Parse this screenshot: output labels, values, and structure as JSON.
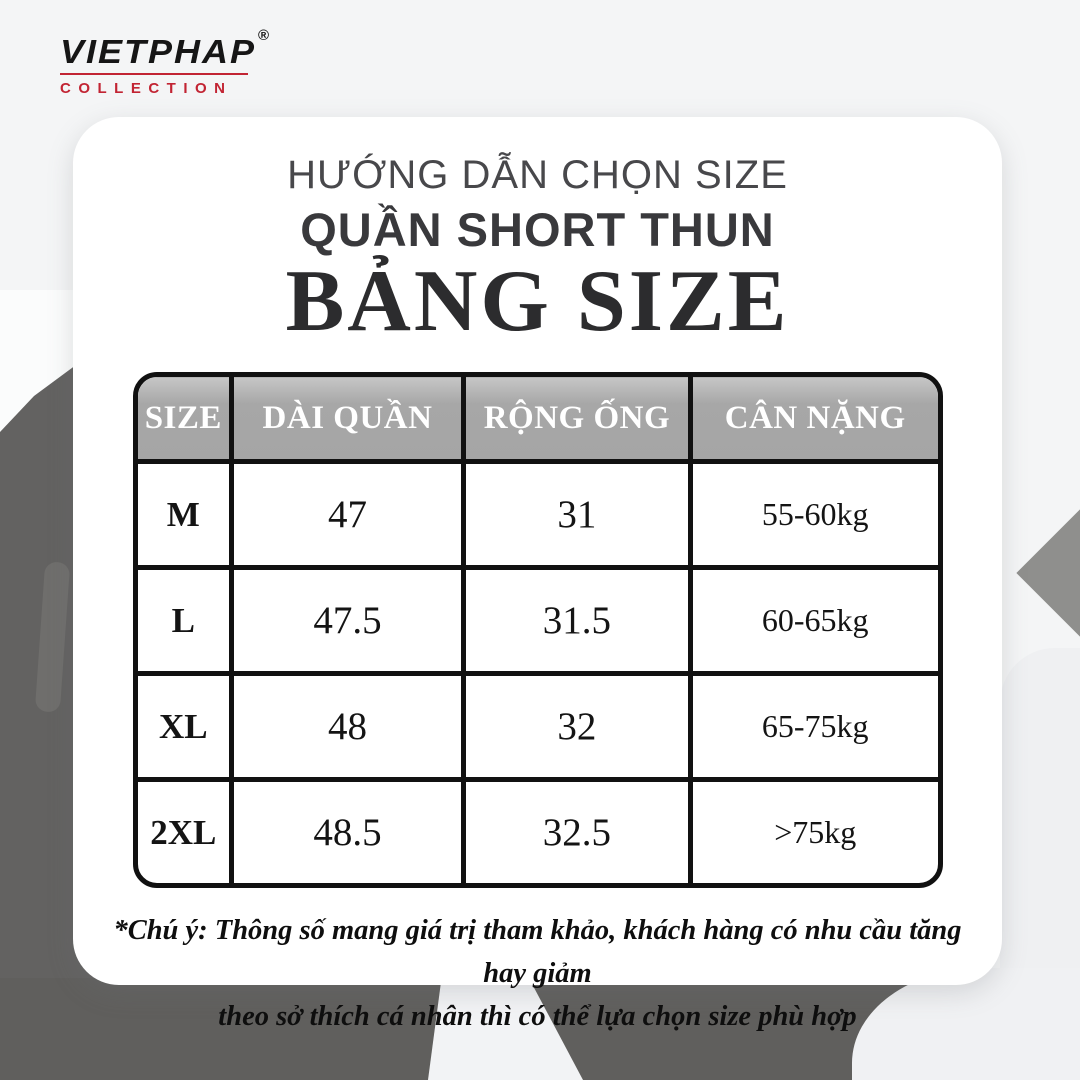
{
  "brand": {
    "name": "VIETPHAP",
    "registered": "®",
    "subtitle": "COLLECTION",
    "accent_color": "#c22433",
    "text_color": "#161616"
  },
  "card": {
    "title": "HƯỚNG DẪN CHỌN SIZE",
    "subtitle": "QUẦN SHORT THUN",
    "heading": "BẢNG SIZE"
  },
  "size_table": {
    "headers": [
      "SIZE",
      "DÀI QUẦN",
      "RỘNG ỐNG",
      "CÂN NẶNG"
    ],
    "rows": [
      {
        "size": "M",
        "dai_quan": "47",
        "rong_ong": "31",
        "can_nang": "55-60kg"
      },
      {
        "size": "L",
        "dai_quan": "47.5",
        "rong_ong": "31.5",
        "can_nang": "60-65kg"
      },
      {
        "size": "XL",
        "dai_quan": "48",
        "rong_ong": "32",
        "can_nang": "65-75kg"
      },
      {
        "size": "2XL",
        "dai_quan": "48.5",
        "rong_ong": "32.5",
        "can_nang": ">75kg"
      }
    ],
    "header_bg": "#a7a7a7",
    "header_text_color": "#ffffff",
    "border_color": "#111111"
  },
  "note": {
    "line1": "*Chú ý: Thông số mang giá trị tham khảo, khách hàng có nhu cầu tăng hay giảm",
    "line2": "theo sở thích cá nhân thì có thể lựa chọn size phù hợp"
  },
  "photo": {
    "left_item": "dark gray shorts leg",
    "bottom_item": "dark gray shorts flat lay",
    "right_item": "gray fabric corner",
    "dark_fabric_color": "#616160",
    "light_fabric_color": "#eff0f2"
  }
}
